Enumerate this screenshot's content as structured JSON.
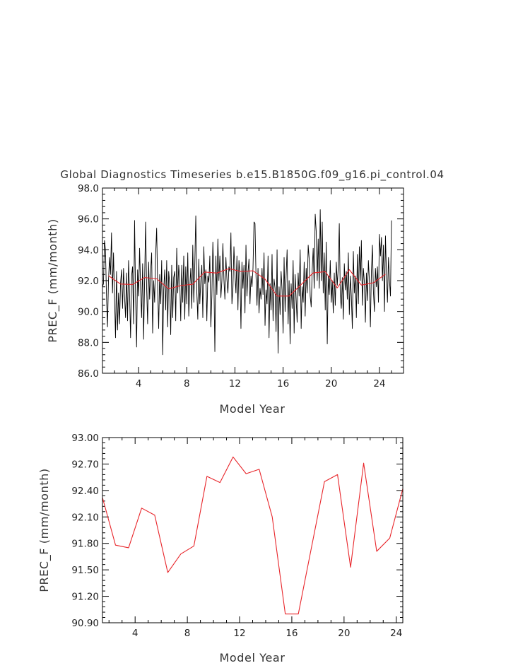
{
  "chart_data": [
    {
      "type": "line",
      "title": "Global Diagnostics Timeseries b.e15.B1850G.f09_g16.pi_control.04",
      "xlabel": "Model Year",
      "ylabel": "PREC_F (mm/month)",
      "xlim": [
        1,
        26
      ],
      "ylim": [
        86.0,
        98.0
      ],
      "xticks": [
        4,
        8,
        12,
        16,
        20,
        24
      ],
      "yticks": [
        "86.0",
        "88.0",
        "90.0",
        "92.0",
        "94.0",
        "96.0",
        "98.0"
      ],
      "series": [
        {
          "color": "#000000",
          "x_start": 1.0,
          "x_step": 0.0833333,
          "values": [
            91.6,
            91.8,
            94.6,
            94.0,
            91.0,
            89.0,
            92.0,
            93.5,
            92.4,
            95.1,
            91.2,
            93.8,
            91.0,
            88.3,
            92.6,
            88.8,
            91.2,
            89.2,
            91.8,
            92.7,
            90.2,
            92.8,
            91.0,
            89.6,
            92.5,
            89.4,
            93.3,
            91.2,
            88.3,
            92.3,
            92.9,
            89.2,
            95.9,
            91.0,
            87.7,
            92.7,
            91.0,
            94.1,
            91.5,
            89.6,
            93.1,
            88.2,
            92.0,
            95.8,
            91.6,
            89.2,
            93.2,
            90.8,
            92.6,
            93.8,
            88.6,
            92.0,
            90.6,
            93.7,
            95.4,
            91.6,
            88.9,
            92.4,
            90.5,
            93.3,
            87.2,
            91.4,
            92.7,
            90.1,
            93.3,
            89.0,
            92.6,
            91.8,
            88.5,
            93.0,
            89.6,
            92.2,
            92.6,
            89.4,
            94.1,
            91.2,
            93.0,
            92.0,
            89.4,
            93.0,
            90.6,
            93.6,
            89.5,
            92.9,
            90.5,
            93.8,
            89.7,
            91.6,
            92.8,
            90.2,
            94.3,
            90.6,
            93.1,
            96.2,
            91.3,
            89.5,
            93.4,
            90.5,
            92.0,
            93.0,
            89.6,
            94.2,
            91.8,
            92.7,
            89.4,
            92.3,
            91.9,
            93.6,
            89.0,
            91.0,
            94.5,
            92.2,
            87.4,
            93.6,
            91.1,
            94.7,
            92.0,
            93.6,
            90.9,
            92.0,
            94.4,
            92.1,
            90.8,
            93.5,
            92.1,
            91.2,
            92.9,
            92.6,
            95.1,
            90.5,
            91.5,
            94.2,
            92.5,
            91.2,
            93.6,
            90.1,
            93.3,
            92.4,
            88.9,
            93.2,
            91.5,
            93.0,
            89.9,
            94.3,
            91.0,
            92.5,
            93.4,
            90.5,
            92.3,
            91.6,
            92.8,
            95.8,
            95.7,
            92.3,
            90.4,
            92.8,
            89.9,
            91.5,
            90.8,
            92.8,
            91.1,
            93.8,
            89.1,
            91.4,
            90.5,
            93.6,
            88.3,
            91.8,
            90.1,
            93.7,
            89.4,
            92.1,
            91.5,
            88.7,
            94.0,
            87.3,
            91.6,
            89.8,
            92.6,
            91.4,
            88.6,
            93.5,
            90.0,
            92.3,
            94.0,
            89.2,
            92.0,
            87.9,
            91.8,
            90.2,
            93.3,
            88.6,
            92.4,
            90.8,
            89.3,
            92.5,
            91.0,
            94.0,
            88.9,
            91.6,
            90.6,
            93.2,
            89.7,
            92.8,
            91.2,
            94.3,
            93.4,
            91.0,
            90.3,
            92.7,
            94.1,
            91.5,
            96.3,
            95.2,
            92.0,
            94.7,
            91.5,
            96.6,
            92.0,
            95.8,
            91.2,
            93.8,
            90.1,
            94.5,
            87.9,
            92.3,
            91.1,
            93.3,
            90.6,
            92.0,
            89.9,
            92.5,
            90.4,
            93.2,
            91.7,
            92.9,
            95.7,
            91.0,
            90.2,
            92.2,
            89.5,
            93.1,
            91.4,
            92.6,
            90.8,
            93.8,
            89.8,
            92.3,
            91.0,
            88.9,
            93.9,
            91.2,
            92.3,
            89.6,
            93.7,
            90.5,
            94.2,
            92.0,
            94.6,
            90.4,
            92.8,
            91.9,
            89.3,
            92.5,
            90.7,
            93.3,
            92.0,
            89.0,
            92.6,
            94.3,
            91.3,
            90.0,
            92.8,
            91.6,
            92.9,
            90.6,
            95.0,
            93.6,
            94.8,
            92.0,
            94.3,
            90.0,
            94.9,
            92.4,
            90.6,
            93.5,
            92.0,
            91.0,
            95.9
          ]
        },
        {
          "color": "#e8252a",
          "x": [
            1.5,
            2.5,
            3.5,
            4.5,
            5.5,
            6.5,
            7.5,
            8.5,
            9.5,
            10.5,
            11.5,
            12.5,
            13.5,
            14.5,
            15.5,
            16.5,
            17.5,
            18.5,
            19.5,
            20.5,
            21.5,
            22.5,
            23.5,
            24.5
          ],
          "values": [
            92.32,
            91.78,
            91.75,
            92.2,
            92.12,
            91.47,
            91.68,
            91.77,
            92.56,
            92.49,
            92.78,
            92.59,
            92.64,
            92.1,
            91.0,
            91.0,
            91.75,
            92.5,
            92.58,
            91.53,
            92.71,
            91.71,
            91.86,
            92.42
          ]
        }
      ]
    },
    {
      "type": "line",
      "xlabel": "Model Year",
      "ylabel": "PREC_F (mm/month)",
      "xlim": [
        1.5,
        24.5
      ],
      "ylim": [
        90.9,
        93.0
      ],
      "xticks": [
        4,
        8,
        12,
        16,
        20,
        24
      ],
      "yticks": [
        "90.90",
        "91.20",
        "91.50",
        "91.80",
        "92.10",
        "92.40",
        "92.70",
        "93.00"
      ],
      "series": [
        {
          "color": "#e8252a",
          "x": [
            1.5,
            2.5,
            3.5,
            4.5,
            5.5,
            6.5,
            7.5,
            8.5,
            9.5,
            10.5,
            11.5,
            12.5,
            13.5,
            14.5,
            15.5,
            16.5,
            17.5,
            18.5,
            19.5,
            20.5,
            21.5,
            22.5,
            23.5,
            24.5
          ],
          "values": [
            92.32,
            91.78,
            91.75,
            92.2,
            92.12,
            91.47,
            91.68,
            91.77,
            92.56,
            92.49,
            92.78,
            92.59,
            92.64,
            92.1,
            91.0,
            91.0,
            91.75,
            92.5,
            92.58,
            91.53,
            92.71,
            91.71,
            91.86,
            92.42
          ]
        }
      ]
    }
  ]
}
